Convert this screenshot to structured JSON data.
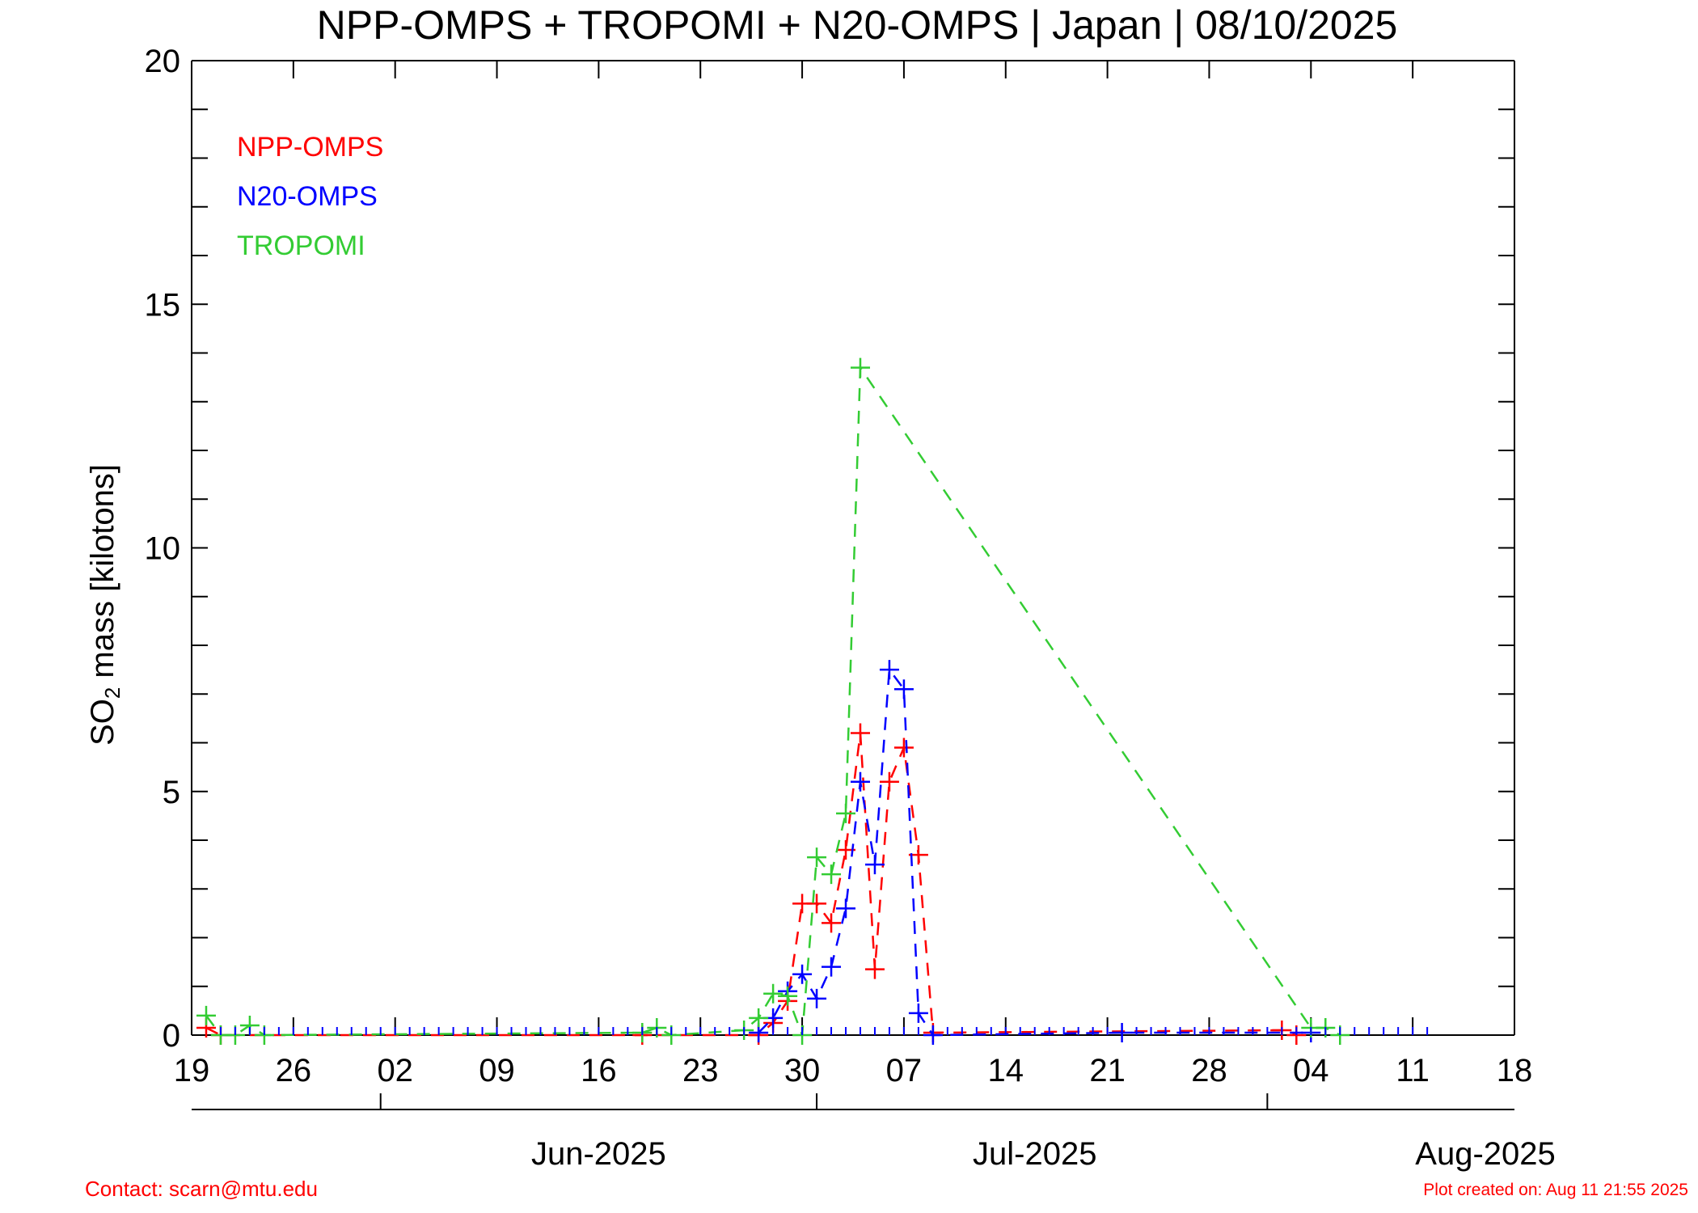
{
  "chart_data": {
    "type": "line",
    "title": "NPP-OMPS + TROPOMI + N20-OMPS | Japan | 08/10/2025",
    "ylabel_main": "SO",
    "ylabel_sub": "2",
    "ylabel_rest": " mass [kilotons]",
    "ylim": [
      0,
      20
    ],
    "yticks": [
      0,
      5,
      10,
      15,
      20
    ],
    "x_start": "2025-05-19",
    "x_end": "2025-08-18",
    "xticks": [
      {
        "date": "2025-05-19",
        "label": "19"
      },
      {
        "date": "2025-05-26",
        "label": "26"
      },
      {
        "date": "2025-06-02",
        "label": "02"
      },
      {
        "date": "2025-06-09",
        "label": "09"
      },
      {
        "date": "2025-06-16",
        "label": "16"
      },
      {
        "date": "2025-06-23",
        "label": "23"
      },
      {
        "date": "2025-06-30",
        "label": "30"
      },
      {
        "date": "2025-07-07",
        "label": "07"
      },
      {
        "date": "2025-07-14",
        "label": "14"
      },
      {
        "date": "2025-07-21",
        "label": "21"
      },
      {
        "date": "2025-07-28",
        "label": "28"
      },
      {
        "date": "2025-08-04",
        "label": "04"
      },
      {
        "date": "2025-08-11",
        "label": "11"
      },
      {
        "date": "2025-08-18",
        "label": "18"
      }
    ],
    "month_ticks": [
      {
        "date": "2025-06-01",
        "label": "Jun-2025"
      },
      {
        "date": "2025-07-01",
        "label": "Jul-2025"
      },
      {
        "date": "2025-08-01",
        "label": "Aug-2025"
      }
    ],
    "legend": {
      "position": "top-left"
    },
    "series": [
      {
        "name": "NPP-OMPS",
        "color": "#ff0000",
        "points": [
          [
            "2025-05-20",
            0.15
          ],
          [
            "2025-05-21",
            0.0
          ],
          [
            "2025-06-19",
            0.0
          ],
          [
            "2025-06-27",
            0.0
          ],
          [
            "2025-06-28",
            0.25
          ],
          [
            "2025-06-29",
            0.7
          ],
          [
            "2025-06-30",
            2.7
          ],
          [
            "2025-07-01",
            2.7
          ],
          [
            "2025-07-02",
            2.3
          ],
          [
            "2025-07-03",
            3.8
          ],
          [
            "2025-07-04",
            6.2
          ],
          [
            "2025-07-05",
            1.35
          ],
          [
            "2025-07-06",
            5.2
          ],
          [
            "2025-07-07",
            5.9
          ],
          [
            "2025-07-08",
            3.7
          ],
          [
            "2025-07-09",
            0.05
          ],
          [
            "2025-08-02",
            0.1
          ],
          [
            "2025-08-03",
            0.0
          ]
        ]
      },
      {
        "name": "N20-OMPS",
        "color": "#0000ff",
        "points": [
          [
            "2025-06-27",
            0.05
          ],
          [
            "2025-06-28",
            0.35
          ],
          [
            "2025-06-29",
            0.9
          ],
          [
            "2025-06-30",
            1.25
          ],
          [
            "2025-07-01",
            0.75
          ],
          [
            "2025-07-02",
            1.4
          ],
          [
            "2025-07-03",
            2.6
          ],
          [
            "2025-07-04",
            5.2
          ],
          [
            "2025-07-05",
            3.5
          ],
          [
            "2025-07-06",
            7.5
          ],
          [
            "2025-07-07",
            7.1
          ],
          [
            "2025-07-08",
            0.45
          ],
          [
            "2025-07-09",
            0.0
          ],
          [
            "2025-07-22",
            0.05
          ],
          [
            "2025-08-04",
            0.05
          ]
        ]
      },
      {
        "name": "TROPOMI",
        "color": "#33cc33",
        "points": [
          [
            "2025-05-20",
            0.4
          ],
          [
            "2025-05-21",
            0.0
          ],
          [
            "2025-05-22",
            0.0
          ],
          [
            "2025-05-23",
            0.2
          ],
          [
            "2025-05-24",
            0.0
          ],
          [
            "2025-06-19",
            0.05
          ],
          [
            "2025-06-20",
            0.15
          ],
          [
            "2025-06-21",
            0.0
          ],
          [
            "2025-06-26",
            0.1
          ],
          [
            "2025-06-27",
            0.35
          ],
          [
            "2025-06-28",
            0.85
          ],
          [
            "2025-06-29",
            0.8
          ],
          [
            "2025-06-30",
            0.0
          ],
          [
            "2025-07-01",
            3.65
          ],
          [
            "2025-07-02",
            3.3
          ],
          [
            "2025-07-03",
            4.55
          ],
          [
            "2025-07-04",
            13.7
          ],
          [
            "2025-08-04",
            0.15
          ],
          [
            "2025-08-05",
            0.15
          ],
          [
            "2025-08-06",
            0.0
          ]
        ]
      }
    ]
  },
  "footer": {
    "contact": "Contact: scarn@mtu.edu",
    "created": "Plot created on: Aug 11 21:55 2025"
  }
}
